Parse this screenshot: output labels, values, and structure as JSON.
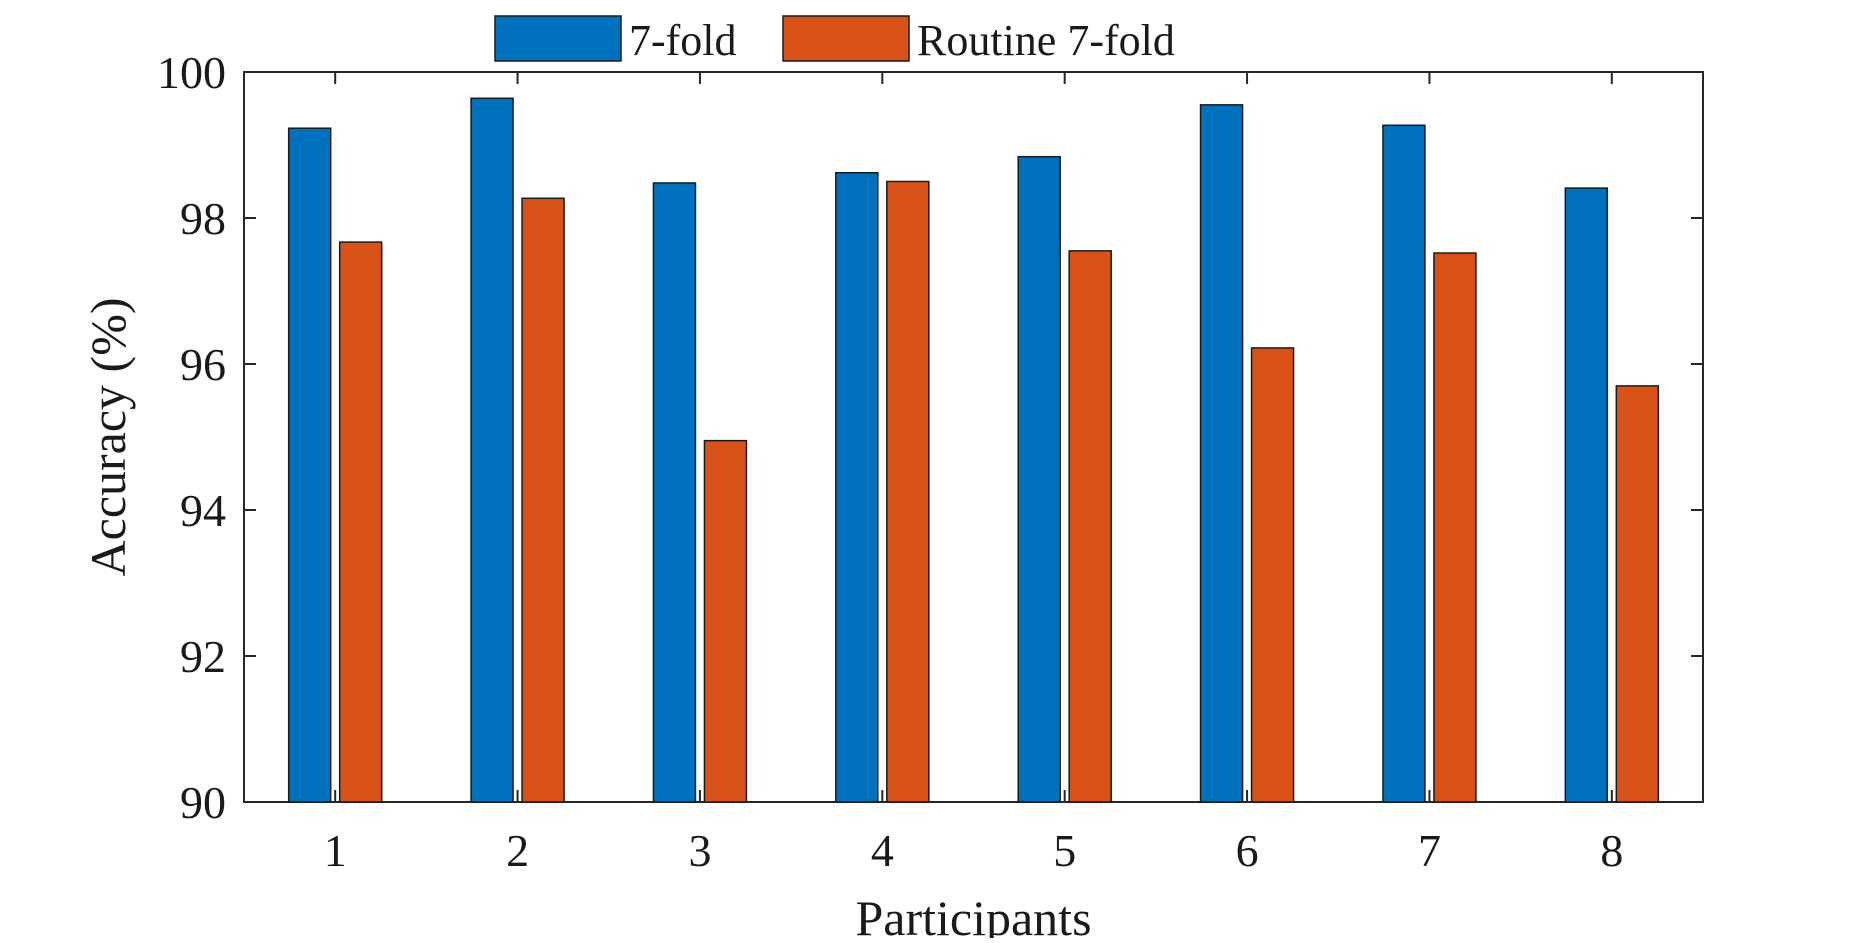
{
  "chart_data": {
    "type": "bar",
    "title": "",
    "xlabel": "Participants",
    "ylabel": "Accuracy (%)",
    "categories": [
      "1",
      "2",
      "3",
      "4",
      "5",
      "6",
      "7",
      "8"
    ],
    "series": [
      {
        "name": "7-fold",
        "color": "#0072BD",
        "values": [
          99.23,
          99.64,
          98.48,
          98.62,
          98.84,
          99.55,
          99.27,
          98.41
        ]
      },
      {
        "name": "Routine 7-fold",
        "color": "#D95319",
        "values": [
          97.67,
          98.27,
          94.95,
          98.5,
          97.55,
          96.22,
          97.52,
          95.7
        ]
      }
    ],
    "ylim": [
      90,
      100
    ],
    "yticks": [
      90,
      92,
      94,
      96,
      98,
      100
    ],
    "grid": false,
    "legend_position": "top, outside plot, horizontal"
  }
}
